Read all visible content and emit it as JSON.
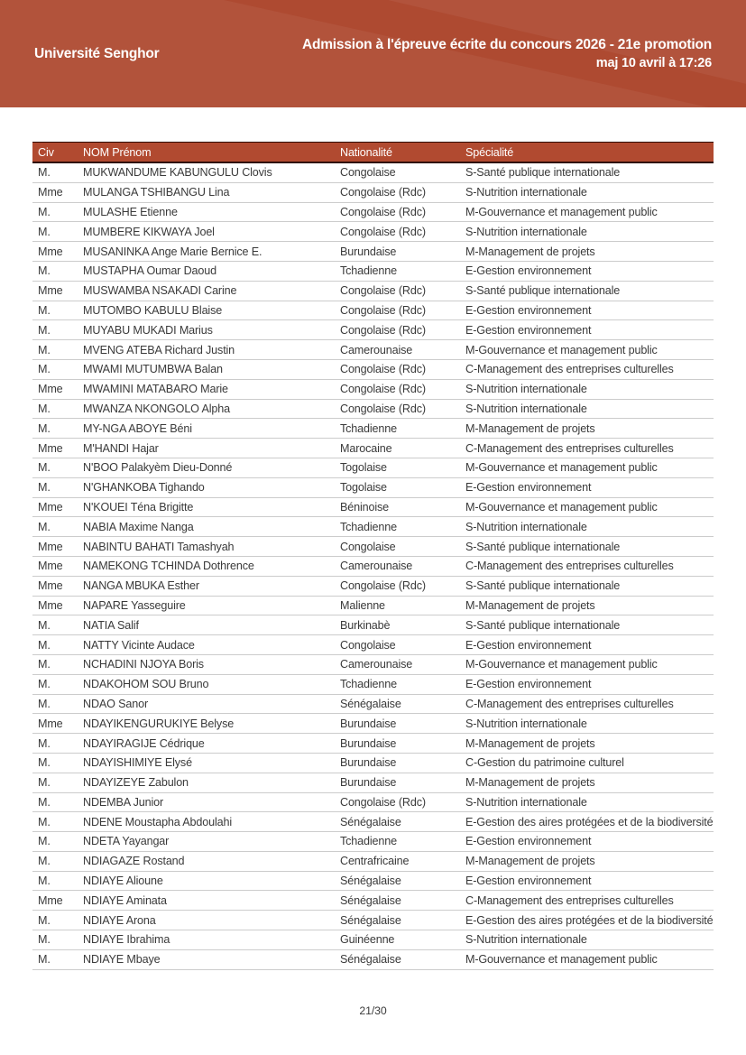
{
  "header": {
    "org": "Université Senghor",
    "title_line1": "Admission à l'épreuve écrite du concours 2026 - 21e promotion",
    "title_line2": "maj 10 avril à 17:26"
  },
  "colors": {
    "banner": "#ae4a31",
    "table_header_bg": "#b14a30",
    "dark_border": "#2f0d06",
    "row_separator": "#cccccc",
    "body_text": "#3a3a3a"
  },
  "table": {
    "columns": [
      "Civ",
      "NOM Prénom",
      "Nationalité",
      "Spécialité"
    ],
    "rows": [
      [
        "M.",
        "MUKWANDUME KABUNGULU Clovis",
        "Congolaise",
        "S-Santé publique internationale"
      ],
      [
        "Mme",
        "MULANGA TSHIBANGU Lina",
        "Congolaise (Rdc)",
        "S-Nutrition internationale"
      ],
      [
        "M.",
        "MULASHE Etienne",
        "Congolaise (Rdc)",
        "M-Gouvernance et management public"
      ],
      [
        "M.",
        "MUMBERE KIKWAYA Joel",
        "Congolaise (Rdc)",
        "S-Nutrition internationale"
      ],
      [
        "Mme",
        "MUSANINKA Ange Marie Bernice E.",
        "Burundaise",
        "M-Management de projets"
      ],
      [
        "M.",
        "MUSTAPHA Oumar Daoud",
        "Tchadienne",
        "E-Gestion environnement"
      ],
      [
        "Mme",
        "MUSWAMBA NSAKADI Carine",
        "Congolaise (Rdc)",
        "S-Santé publique internationale"
      ],
      [
        "M.",
        "MUTOMBO KABULU Blaise",
        "Congolaise (Rdc)",
        "E-Gestion environnement"
      ],
      [
        "M.",
        "MUYABU MUKADI Marius",
        "Congolaise (Rdc)",
        "E-Gestion environnement"
      ],
      [
        "M.",
        "MVENG ATEBA Richard Justin",
        "Camerounaise",
        "M-Gouvernance et management public"
      ],
      [
        "M.",
        "MWAMI MUTUMBWA Balan",
        "Congolaise (Rdc)",
        "C-Management des entreprises culturelles"
      ],
      [
        "Mme",
        "MWAMINI MATABARO Marie",
        "Congolaise (Rdc)",
        "S-Nutrition internationale"
      ],
      [
        "M.",
        "MWANZA NKONGOLO Alpha",
        "Congolaise (Rdc)",
        "S-Nutrition internationale"
      ],
      [
        "M.",
        "MY-NGA ABOYE Béni",
        "Tchadienne",
        "M-Management de projets"
      ],
      [
        "Mme",
        "M'HANDI Hajar",
        "Marocaine",
        "C-Management des entreprises culturelles"
      ],
      [
        "M.",
        "N'BOO Palakyèm Dieu-Donné",
        "Togolaise",
        "M-Gouvernance et management public"
      ],
      [
        "M.",
        "N'GHANKOBA Tighando",
        "Togolaise",
        "E-Gestion environnement"
      ],
      [
        "Mme",
        "N'KOUEI Téna Brigitte",
        "Béninoise",
        "M-Gouvernance et management public"
      ],
      [
        "M.",
        "NABIA Maxime Nanga",
        "Tchadienne",
        "S-Nutrition internationale"
      ],
      [
        "Mme",
        "NABINTU BAHATI Tamashyah",
        "Congolaise",
        "S-Santé publique internationale"
      ],
      [
        "Mme",
        "NAMEKONG TCHINDA Dothrence",
        "Camerounaise",
        "C-Management des entreprises culturelles"
      ],
      [
        "Mme",
        "NANGA MBUKA Esther",
        "Congolaise (Rdc)",
        "S-Santé publique internationale"
      ],
      [
        "Mme",
        "NAPARE Yasseguire",
        "Malienne",
        "M-Management de projets"
      ],
      [
        "M.",
        "NATIA Salif",
        "Burkinabè",
        "S-Santé publique internationale"
      ],
      [
        "M.",
        "NATTY Vicinte Audace",
        "Congolaise",
        "E-Gestion environnement"
      ],
      [
        "M.",
        "NCHADINI NJOYA Boris",
        "Camerounaise",
        "M-Gouvernance et management public"
      ],
      [
        "M.",
        "NDAKOHOM SOU Bruno",
        "Tchadienne",
        "E-Gestion environnement"
      ],
      [
        "M.",
        "NDAO Sanor",
        "Sénégalaise",
        "C-Management des entreprises culturelles"
      ],
      [
        "Mme",
        "NDAYIKENGURUKIYE Belyse",
        "Burundaise",
        "S-Nutrition internationale"
      ],
      [
        "M.",
        "NDAYIRAGIJE Cédrique",
        "Burundaise",
        "M-Management de projets"
      ],
      [
        "M.",
        "NDAYISHIMIYE Elysé",
        "Burundaise",
        "C-Gestion du patrimoine culturel"
      ],
      [
        "M.",
        "NDAYIZEYE Zabulon",
        "Burundaise",
        "M-Management de projets"
      ],
      [
        "M.",
        "NDEMBA Junior",
        "Congolaise (Rdc)",
        "S-Nutrition internationale"
      ],
      [
        "M.",
        "NDENE Moustapha Abdoulahi",
        "Sénégalaise",
        "E-Gestion des aires protégées et de la biodiversité"
      ],
      [
        "M.",
        "NDETA Yayangar",
        "Tchadienne",
        "E-Gestion environnement"
      ],
      [
        "M.",
        "NDIAGAZE Rostand",
        "Centrafricaine",
        "M-Management de projets"
      ],
      [
        "M.",
        "NDIAYE Alioune",
        "Sénégalaise",
        "E-Gestion environnement"
      ],
      [
        "Mme",
        "NDIAYE Aminata",
        "Sénégalaise",
        "C-Management des entreprises culturelles"
      ],
      [
        "M.",
        "NDIAYE Arona",
        "Sénégalaise",
        "E-Gestion des aires protégées et de la biodiversité"
      ],
      [
        "M.",
        "NDIAYE Ibrahima",
        "Guinéenne",
        "S-Nutrition internationale"
      ],
      [
        "M.",
        "NDIAYE Mbaye",
        "Sénégalaise",
        "M-Gouvernance et management public"
      ]
    ]
  },
  "footer": {
    "page_indicator": "21/30"
  }
}
